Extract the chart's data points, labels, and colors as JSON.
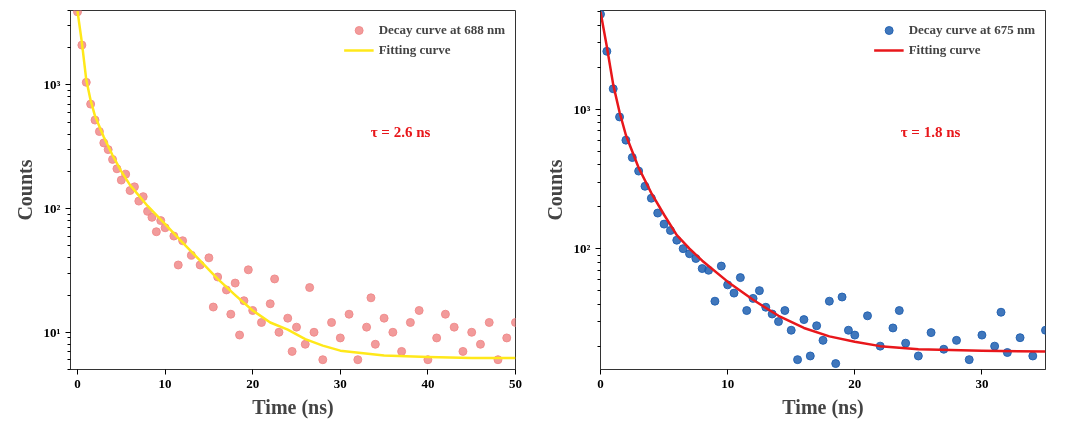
{
  "chart_data": [
    {
      "type": "scatter",
      "xlabel": "Time (ns)",
      "ylabel": "Counts",
      "log": "y",
      "xlim": [
        -0.8,
        50
      ],
      "ylim": [
        5,
        4000
      ],
      "xticks": [
        0,
        10,
        20,
        30,
        40,
        50
      ],
      "yticks": [
        {
          "value": 10,
          "label": "10¹"
        },
        {
          "value": 100,
          "label": "10²"
        },
        {
          "value": 1000,
          "label": "10³"
        }
      ],
      "grid": false,
      "legend": "top right",
      "annotations": [
        "τ = 2.6 ns"
      ],
      "series": [
        {
          "name": "Decay curve at 688 nm",
          "marker": "circle",
          "color": "#f08a8a",
          "x": [
            0,
            0.5,
            1,
            1.5,
            2,
            2.5,
            3,
            3.5,
            4,
            4.5,
            5,
            5.5,
            6,
            6.5,
            7,
            7.5,
            8,
            8.5,
            9,
            9.5,
            10,
            11,
            11.5,
            12,
            13,
            14,
            15,
            15.5,
            16,
            17,
            17.5,
            18,
            18.5,
            19,
            19.5,
            20,
            21,
            22,
            22.5,
            23,
            24,
            24.5,
            25,
            26,
            26.5,
            27,
            28,
            29,
            30,
            31,
            32,
            33,
            33.5,
            34,
            35,
            36,
            37,
            38,
            39,
            40,
            41,
            42,
            43,
            44,
            45,
            46,
            47,
            48,
            49,
            50
          ],
          "values": [
            3900,
            2100,
            1050,
            700,
            520,
            420,
            340,
            300,
            250,
            210,
            170,
            190,
            140,
            150,
            115,
            125,
            95,
            85,
            65,
            80,
            70,
            60,
            35,
            55,
            42,
            35,
            40,
            16,
            28,
            22,
            14,
            25,
            9.5,
            18,
            32,
            15,
            12,
            17,
            27,
            10,
            13,
            7,
            11,
            8,
            23,
            10,
            6,
            12,
            9,
            14,
            6,
            11,
            19,
            8,
            13,
            10,
            7,
            12,
            15,
            6,
            9,
            14,
            11,
            7,
            10,
            8,
            12,
            6,
            9,
            12
          ]
        },
        {
          "name": "Fitting curve",
          "type": "line",
          "color": "#ffe81a",
          "x": [
            0,
            0.5,
            1,
            1.5,
            2,
            3,
            4,
            5,
            6,
            8,
            10,
            12,
            14,
            16,
            18,
            20,
            22,
            24,
            26,
            28,
            30,
            35,
            40,
            45,
            50
          ],
          "values": [
            3950,
            2200,
            1100,
            750,
            560,
            380,
            270,
            200,
            155,
            105,
            75,
            53,
            38,
            27,
            20,
            15,
            12,
            10.5,
            8.8,
            7.8,
            7.1,
            6.5,
            6.3,
            6.2,
            6.2
          ]
        }
      ]
    },
    {
      "type": "scatter",
      "xlabel": "Time (ns)",
      "ylabel": "Counts",
      "log": "y",
      "xlim": [
        0,
        35
      ],
      "ylim": [
        13.6,
        5100
      ],
      "xticks": [
        0,
        10,
        20,
        30
      ],
      "yticks": [
        {
          "value": 100,
          "label": "10²"
        },
        {
          "value": 1000,
          "label": "10³"
        }
      ],
      "grid": false,
      "legend": "top right",
      "annotations": [
        "τ = 1.8 ns"
      ],
      "series": [
        {
          "name": "Decay curve at 675 nm",
          "marker": "circle",
          "color": "#1f5fb0",
          "x": [
            0,
            0.5,
            1,
            1.5,
            2,
            2.5,
            3,
            3.5,
            4,
            4.5,
            5,
            5.5,
            6,
            6.5,
            7,
            7.5,
            8,
            8.5,
            9,
            9.5,
            10,
            10.5,
            11,
            11.5,
            12,
            12.5,
            13,
            13.5,
            14,
            14.5,
            15,
            15.5,
            16,
            16.5,
            17,
            17.5,
            18,
            18.5,
            19,
            19.5,
            20,
            21,
            22,
            23,
            23.5,
            24,
            25,
            26,
            27,
            28,
            29,
            30,
            31,
            31.5,
            32,
            33,
            34,
            35
          ],
          "values": [
            4800,
            2600,
            1400,
            880,
            600,
            450,
            360,
            280,
            230,
            180,
            150,
            135,
            115,
            100,
            92,
            85,
            72,
            70,
            42,
            75,
            55,
            48,
            62,
            36,
            44,
            50,
            38,
            34,
            30,
            36,
            26,
            16,
            31,
            17,
            28,
            22,
            42,
            15,
            45,
            26,
            24,
            33,
            20,
            27,
            36,
            21,
            17,
            25,
            19,
            22,
            16,
            24,
            20,
            35,
            18,
            23,
            17,
            26
          ]
        },
        {
          "name": "Fitting curve",
          "type": "line",
          "color": "#e8171b",
          "x": [
            0,
            0.5,
            1,
            1.5,
            2,
            3,
            4,
            5,
            6,
            7,
            8,
            10,
            12,
            14,
            16,
            18,
            20,
            22,
            25,
            30,
            35
          ],
          "values": [
            5000,
            2800,
            1500,
            950,
            650,
            380,
            250,
            175,
            125,
            100,
            82,
            58,
            43,
            33,
            27,
            23.5,
            21.5,
            20,
            19,
            18.5,
            18.3
          ]
        }
      ]
    }
  ]
}
